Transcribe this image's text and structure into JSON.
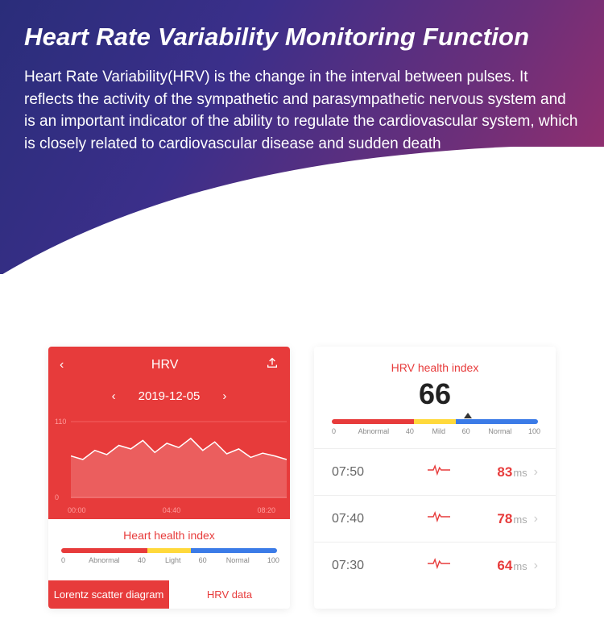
{
  "hero": {
    "title": "Heart Rate Variability Monitoring Function",
    "body": "Heart Rate Variability(HRV) is the change in the interval between pulses. It reflects the activity of the sympathetic and parasympathetic nervous system and is an important indicator of the ability to regulate the cardiovascular system, which is closely related to cardiovascular disease and sudden death"
  },
  "colors": {
    "hero_grad_from": "#2a2d7a",
    "hero_grad_to": "#a02f6a",
    "accent_red": "#e73b3b",
    "seg_red": "#e73b3b",
    "seg_yellow": "#ffd93b",
    "seg_blue": "#3b7be7"
  },
  "phone1": {
    "header_title": "HRV",
    "date": "2019-12-05",
    "chart": {
      "y_max": 110,
      "y_min": 0,
      "x_ticks": [
        "00:00",
        "04:40",
        "08:20"
      ],
      "points": [
        60,
        55,
        68,
        62,
        75,
        70,
        82,
        65,
        78,
        72,
        85,
        68,
        80,
        63,
        70,
        58,
        64,
        60,
        55
      ]
    },
    "index_title": "Heart health index",
    "index_segments": [
      {
        "label": "Abnormal",
        "from": 0,
        "to": 40,
        "color": "#e73b3b"
      },
      {
        "label": "Light",
        "from": 40,
        "to": 60,
        "color": "#ffd93b"
      },
      {
        "label": "Normal",
        "from": 60,
        "to": 100,
        "color": "#3b7be7"
      }
    ],
    "tabs": {
      "active": "Lorentz scatter diagram",
      "inactive": "HRV data"
    }
  },
  "phone2": {
    "title": "HRV health index",
    "value": "66",
    "index_segments": [
      {
        "label": "Abnormal",
        "from": 0,
        "to": 40,
        "color": "#e73b3b"
      },
      {
        "label": "Mild",
        "from": 40,
        "to": 60,
        "color": "#ffd93b"
      },
      {
        "label": "Normal",
        "from": 60,
        "to": 100,
        "color": "#3b7be7"
      }
    ],
    "marker_pct": 66,
    "rows": [
      {
        "time": "07:50",
        "value": "83",
        "unit": "ms"
      },
      {
        "time": "07:40",
        "value": "78",
        "unit": "ms"
      },
      {
        "time": "07:30",
        "value": "64",
        "unit": "ms"
      }
    ]
  }
}
